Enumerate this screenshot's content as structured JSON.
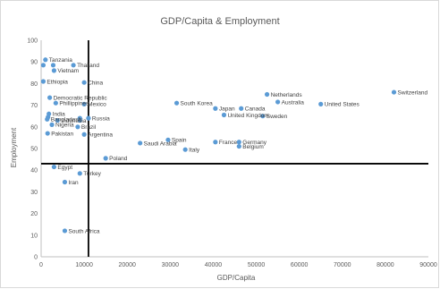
{
  "chart_data": {
    "type": "scatter",
    "title": "GDP/Capita & Employment",
    "xlabel": "GDP/Capita",
    "ylabel": "Employment",
    "xlim": [
      0,
      90000
    ],
    "ylim": [
      0,
      100
    ],
    "x_ticks": [
      0,
      10000,
      20000,
      30000,
      40000,
      50000,
      60000,
      70000,
      80000,
      90000
    ],
    "y_ticks": [
      0,
      10,
      20,
      30,
      40,
      50,
      60,
      70,
      80,
      90,
      100
    ],
    "grid": false,
    "reference_lines": {
      "x": 11000,
      "y": 43
    },
    "marker_color": "#5b9bd5",
    "points": [
      {
        "name": "Tanzania",
        "x": 1000,
        "y": 91
      },
      {
        "name": "",
        "x": 500,
        "y": 88.5
      },
      {
        "name": "",
        "x": 2800,
        "y": 88.5
      },
      {
        "name": "Thailand",
        "x": 7500,
        "y": 88.5
      },
      {
        "name": "Vietnam",
        "x": 3000,
        "y": 86
      },
      {
        "name": "Ethiopia",
        "x": 500,
        "y": 81
      },
      {
        "name": "China",
        "x": 10000,
        "y": 80.5
      },
      {
        "name": "Democratic Republic",
        "x": 2000,
        "y": 73.5
      },
      {
        "name": "Phillippines",
        "x": 3400,
        "y": 71
      },
      {
        "name": "Mexico",
        "x": 10000,
        "y": 70.5
      },
      {
        "name": "India",
        "x": 1800,
        "y": 66
      },
      {
        "name": "",
        "x": 1600,
        "y": 64.5
      },
      {
        "name": "Bangladesh",
        "x": 1400,
        "y": 63.5
      },
      {
        "name": "Indonesia",
        "x": 3800,
        "y": 63
      },
      {
        "name": "",
        "x": 9000,
        "y": 64
      },
      {
        "name": "Russia",
        "x": 11000,
        "y": 64
      },
      {
        "name": "",
        "x": 9000,
        "y": 63
      },
      {
        "name": "Nigeria",
        "x": 2500,
        "y": 61
      },
      {
        "name": "Brazil",
        "x": 8500,
        "y": 60
      },
      {
        "name": "Pakistan",
        "x": 1500,
        "y": 57
      },
      {
        "name": "Argentina",
        "x": 10000,
        "y": 56.5
      },
      {
        "name": "Poland",
        "x": 15000,
        "y": 45.5
      },
      {
        "name": "Saudi Arabia",
        "x": 23000,
        "y": 52.5
      },
      {
        "name": "Spain",
        "x": 29500,
        "y": 54
      },
      {
        "name": "Italy",
        "x": 33500,
        "y": 49.5
      },
      {
        "name": "South Korea",
        "x": 31500,
        "y": 71
      },
      {
        "name": "Japan",
        "x": 40500,
        "y": 68.5
      },
      {
        "name": "Canada",
        "x": 46500,
        "y": 68.5
      },
      {
        "name": "United Kingdom",
        "x": 42500,
        "y": 65.5
      },
      {
        "name": "France",
        "x": 40500,
        "y": 53
      },
      {
        "name": "Germany",
        "x": 46000,
        "y": 53
      },
      {
        "name": "Belgium",
        "x": 46000,
        "y": 51
      },
      {
        "name": "Sweden",
        "x": 51500,
        "y": 65
      },
      {
        "name": "Netherlands",
        "x": 52500,
        "y": 75
      },
      {
        "name": "Australia",
        "x": 55000,
        "y": 71.5
      },
      {
        "name": "United States",
        "x": 65000,
        "y": 70.5
      },
      {
        "name": "Switzerland",
        "x": 82000,
        "y": 76
      },
      {
        "name": "Egypt",
        "x": 3000,
        "y": 41.5
      },
      {
        "name": "Turkey",
        "x": 9000,
        "y": 38.5
      },
      {
        "name": "Iran",
        "x": 5500,
        "y": 34.5
      },
      {
        "name": "South Africa",
        "x": 5500,
        "y": 12
      }
    ]
  }
}
